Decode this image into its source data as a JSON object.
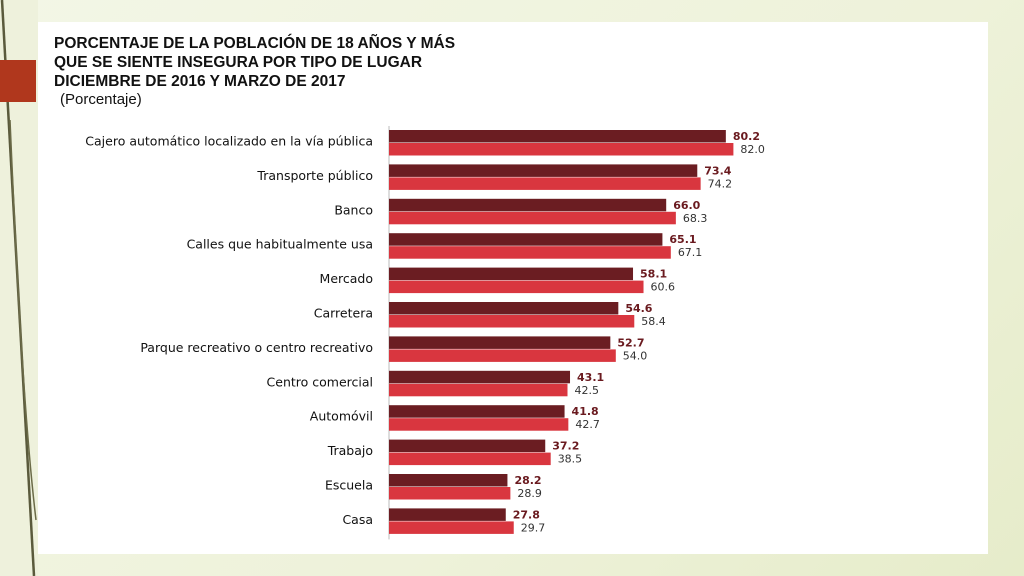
{
  "slide": {
    "accent_color": "#b0371d",
    "background_color": "#eef2da"
  },
  "chart_data": {
    "type": "bar",
    "orientation": "horizontal",
    "title_lines": [
      "PORCENTAJE DE LA POBLACIÓN DE 18 AÑOS Y MÁS",
      "QUE SE SIENTE INSEGURA POR TIPO DE LUGAR",
      "DICIEMBRE DE 2016 Y MARZO DE 2017"
    ],
    "subtitle": "(Porcentaje)",
    "xlabel": "",
    "ylabel": "",
    "xlim": [
      0,
      100
    ],
    "grid": false,
    "legend": "none",
    "categories": [
      "Cajero automático localizado en la vía pública",
      "Transporte público",
      "Banco",
      "Calles que habitualmente usa",
      "Mercado",
      "Carretera",
      "Parque recreativo o centro recreativo",
      "Centro comercial",
      "Automóvil",
      "Trabajo",
      "Escuela",
      "Casa"
    ],
    "series": [
      {
        "color": "#6b1d22",
        "values": [
          80.2,
          73.4,
          66.0,
          65.1,
          58.1,
          54.6,
          52.7,
          43.1,
          41.8,
          37.2,
          28.2,
          27.8
        ],
        "labels": [
          "80.2",
          "73.4",
          "66.0",
          "65.1",
          "58.1",
          "54.6",
          "52.7",
          "43.1",
          "41.8",
          "37.2",
          "28.2",
          "27.8"
        ]
      },
      {
        "color": "#d9363f",
        "values": [
          82.0,
          74.2,
          68.3,
          67.1,
          60.6,
          58.4,
          54.0,
          42.5,
          42.7,
          38.5,
          28.9,
          29.7
        ],
        "labels": [
          "82.0",
          "74.2",
          "68.3",
          "67.1",
          "60.6",
          "58.4",
          "54.0",
          "42.5",
          "42.7",
          "38.5",
          "28.9",
          "29.7"
        ]
      }
    ]
  }
}
